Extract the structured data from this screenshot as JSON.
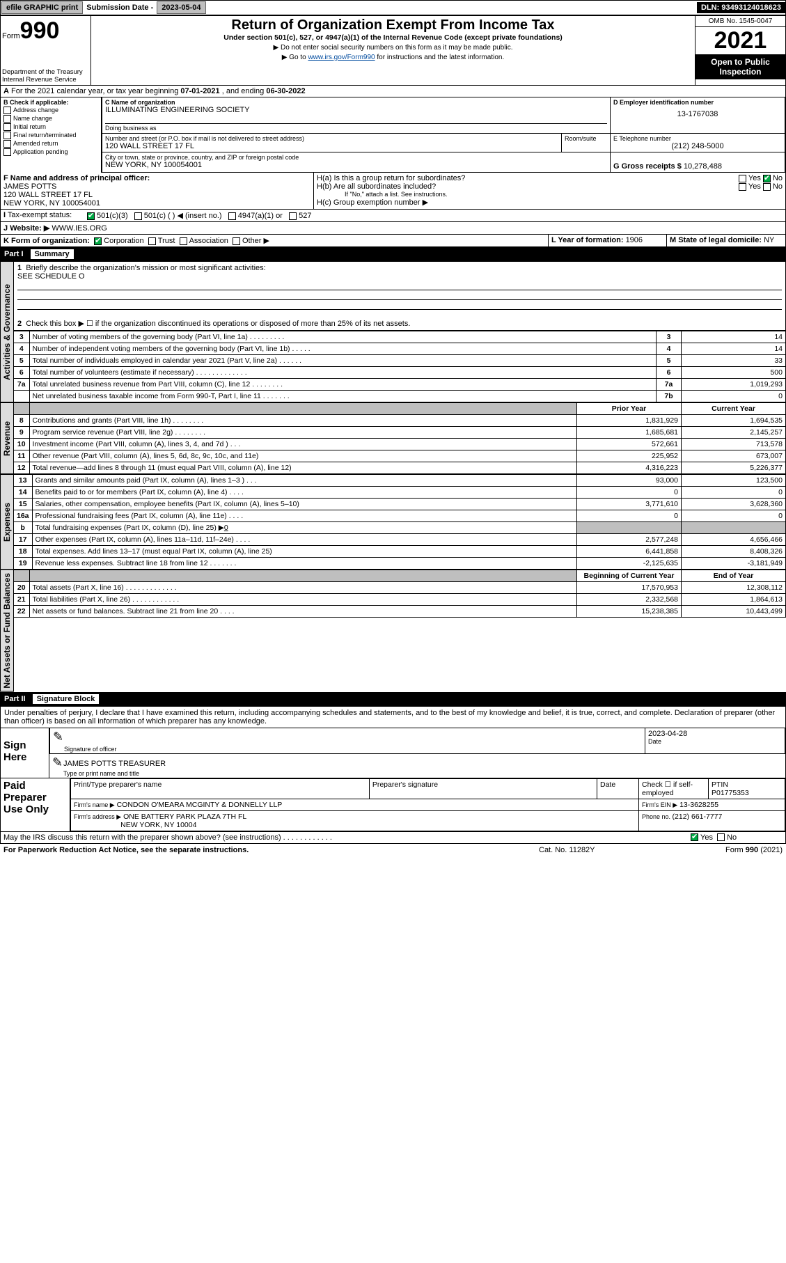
{
  "topbar": {
    "efile": "efile GRAPHIC print",
    "subLbl": "Submission Date - ",
    "subDate": "2023-05-04",
    "dln": "DLN: 93493124018623"
  },
  "header": {
    "form": "Form",
    "num": "990",
    "dept": "Department of the Treasury\nInternal Revenue Service",
    "title": "Return of Organization Exempt From Income Tax",
    "sub": "Under section 501(c), 527, or 4947(a)(1) of the Internal Revenue Code (except private foundations)",
    "note1": "▶ Do not enter social security numbers on this form as it may be made public.",
    "note2": "▶ Go to ",
    "noteLink": "www.irs.gov/Form990",
    "note3": " for instructions and the latest information.",
    "omb": "OMB No. 1545-0047",
    "year": "2021",
    "open": "Open to Public Inspection"
  },
  "A": {
    "text": "For the 2021 calendar year, or tax year beginning ",
    "begin": "07-01-2021",
    "mid": " , and ending ",
    "end": "06-30-2022"
  },
  "B": {
    "hdr": "B Check if applicable:",
    "opts": [
      "Address change",
      "Name change",
      "Initial return",
      "Final return/terminated",
      "Amended return",
      "Application pending"
    ]
  },
  "C": {
    "nameHdr": "C Name of organization",
    "name": "ILLUMINATING ENGINEERING SOCIETY",
    "dbaHdr": "Doing business as",
    "addrHdr": "Number and street (or P.O. box if mail is not delivered to street address)",
    "suite": "Room/suite",
    "addr": "120 WALL STREET 17 FL",
    "cityHdr": "City or town, state or province, country, and ZIP or foreign postal code",
    "city": "NEW YORK, NY  100054001"
  },
  "D": {
    "hdr": "D Employer identification number",
    "ein": "13-1767038"
  },
  "E": {
    "hdr": "E Telephone number",
    "tel": "(212) 248-5000"
  },
  "G": {
    "hdr": "G Gross receipts $ ",
    "val": "10,278,488"
  },
  "F": {
    "hdr": "F Name and address of principal officer:",
    "name": "JAMES POTTS",
    "addr1": "120 WALL STREET 17 FL",
    "addr2": "NEW YORK, NY  100054001"
  },
  "H": {
    "a": "H(a)  Is this a group return for subordinates?",
    "b": "H(b)  Are all subordinates included?",
    "bnote": "If \"No,\" attach a list. See instructions.",
    "c": "H(c)  Group exemption number ▶",
    "yes": "Yes",
    "no": "No"
  },
  "I": {
    "hdr": "Tax-exempt status:",
    "opts": [
      "501(c)(3)",
      "501(c) (   ) ◀ (insert no.)",
      "4947(a)(1) or",
      "527"
    ]
  },
  "J": {
    "hdr": "Website: ▶",
    "val": " WWW.IES.ORG"
  },
  "K": {
    "hdr": "K Form of organization:",
    "opts": [
      "Corporation",
      "Trust",
      "Association",
      "Other ▶"
    ]
  },
  "L": {
    "hdr": "L Year of formation: ",
    "val": "1906"
  },
  "M": {
    "hdr": "M State of legal domicile: ",
    "val": "NY"
  },
  "part1": {
    "hdr": "Part I",
    "title": "Summary",
    "l1": "Briefly describe the organization's mission or most significant activities:",
    "l1v": "SEE SCHEDULE O",
    "l2": "Check this box ▶ ☐ if the organization discontinued its operations or disposed of more than 25% of its net assets.",
    "rows": [
      {
        "n": "3",
        "t": "Number of voting members of the governing body (Part VI, line 1a)   .    .    .    .    .    .    .    .    .",
        "c": "3",
        "v": "14"
      },
      {
        "n": "4",
        "t": "Number of independent voting members of the governing body (Part VI, line 1b)   .    .    .    .    .",
        "c": "4",
        "v": "14"
      },
      {
        "n": "5",
        "t": "Total number of individuals employed in calendar year 2021 (Part V, line 2a)   .    .    .    .    .    .",
        "c": "5",
        "v": "33"
      },
      {
        "n": "6",
        "t": "Total number of volunteers (estimate if necessary)   .    .    .    .    .    .    .    .    .    .    .    .    .",
        "c": "6",
        "v": "500"
      },
      {
        "n": "7a",
        "t": "Total unrelated business revenue from Part VIII, column (C), line 12   .    .    .    .    .    .    .    .",
        "c": "7a",
        "v": "1,019,293"
      },
      {
        "n": "",
        "t": "Net unrelated business taxable income from Form 990-T, Part I, line 11   .    .    .    .    .    .    .",
        "c": "7b",
        "v": "0"
      }
    ],
    "colHdr": {
      "prior": "Prior Year",
      "curr": "Current Year"
    },
    "rev": [
      {
        "n": "8",
        "t": "Contributions and grants (Part VIII, line 1h)   .    .    .    .    .    .    .    .",
        "p": "1,831,929",
        "c": "1,694,535"
      },
      {
        "n": "9",
        "t": "Program service revenue (Part VIII, line 2g)   .    .    .    .    .    .    .    .",
        "p": "1,685,681",
        "c": "2,145,257"
      },
      {
        "n": "10",
        "t": "Investment income (Part VIII, column (A), lines 3, 4, and 7d )   .    .    .",
        "p": "572,661",
        "c": "713,578"
      },
      {
        "n": "11",
        "t": "Other revenue (Part VIII, column (A), lines 5, 6d, 8c, 9c, 10c, and 11e)",
        "p": "225,952",
        "c": "673,007"
      },
      {
        "n": "12",
        "t": "Total revenue—add lines 8 through 11 (must equal Part VIII, column (A), line 12)",
        "p": "4,316,223",
        "c": "5,226,377"
      }
    ],
    "exp": [
      {
        "n": "13",
        "t": "Grants and similar amounts paid (Part IX, column (A), lines 1–3 )   .    .    .",
        "p": "93,000",
        "c": "123,500"
      },
      {
        "n": "14",
        "t": "Benefits paid to or for members (Part IX, column (A), line 4)   .    .    .    .",
        "p": "0",
        "c": "0"
      },
      {
        "n": "15",
        "t": "Salaries, other compensation, employee benefits (Part IX, column (A), lines 5–10)",
        "p": "3,771,610",
        "c": "3,628,360"
      },
      {
        "n": "16a",
        "t": "Professional fundraising fees (Part IX, column (A), line 11e)   .    .    .    .",
        "p": "0",
        "c": "0"
      },
      {
        "n": "b",
        "t": "Total fundraising expenses (Part IX, column (D), line 25) ▶<u>0</u>",
        "p": "",
        "c": "",
        "shade": true
      },
      {
        "n": "17",
        "t": "Other expenses (Part IX, column (A), lines 11a–11d, 11f–24e)   .    .    .    .",
        "p": "2,577,248",
        "c": "4,656,466"
      },
      {
        "n": "18",
        "t": "Total expenses. Add lines 13–17 (must equal Part IX, column (A), line 25)",
        "p": "6,441,858",
        "c": "8,408,326"
      },
      {
        "n": "19",
        "t": "Revenue less expenses. Subtract line 18 from line 12   .    .    .    .    .    .    .",
        "p": "-2,125,635",
        "c": "-3,181,949"
      }
    ],
    "netHdr": {
      "beg": "Beginning of Current Year",
      "end": "End of Year"
    },
    "net": [
      {
        "n": "20",
        "t": "Total assets (Part X, line 16)   .    .    .    .    .    .    .    .    .    .    .    .    .",
        "p": "17,570,953",
        "c": "12,308,112"
      },
      {
        "n": "21",
        "t": "Total liabilities (Part X, line 26)   .    .    .    .    .    .    .    .    .    .    .    .",
        "p": "2,332,568",
        "c": "1,864,613"
      },
      {
        "n": "22",
        "t": "Net assets or fund balances. Subtract line 21 from line 20   .    .    .    .",
        "p": "15,238,385",
        "c": "10,443,499"
      }
    ],
    "sections": {
      "gov": "Activities & Governance",
      "rev": "Revenue",
      "exp": "Expenses",
      "net": "Net Assets or Fund Balances"
    }
  },
  "part2": {
    "hdr": "Part II",
    "title": "Signature Block",
    "decl": "Under penalties of perjury, I declare that I have examined this return, including accompanying schedules and statements, and to the best of my knowledge and belief, it is true, correct, and complete. Declaration of preparer (other than officer) is based on all information of which preparer has any knowledge.",
    "signHere": "Sign Here",
    "sigOff": "Signature of officer",
    "date": "Date",
    "dateVal": "2023-04-28",
    "officer": "JAMES POTTS  TREASURER",
    "typeName": "Type or print name and title",
    "paid": "Paid Preparer Use Only",
    "pName": "Print/Type preparer's name",
    "pSig": "Preparer's signature",
    "pDate": "Date",
    "pCheck": "Check ☐ if self-employed",
    "ptin": "PTIN",
    "ptinV": "P01775353",
    "firmName": "Firm's name    ▶",
    "firmV": "CONDON O'MEARA MCGINTY & DONNELLY LLP",
    "firmEin": "Firm's EIN ▶",
    "firmEinV": "13-3628255",
    "firmAddr": "Firm's address ▶",
    "firmAddrV": "ONE BATTERY PARK PLAZA 7TH FL",
    "firmCity": "NEW YORK, NY  10004",
    "phone": "Phone no. ",
    "phoneV": "(212) 661-7777",
    "may": "May the IRS discuss this return with the preparer shown above? (see instructions)   .    .    .    .    .    .    .    .    .    .    .    .",
    "yes": "Yes",
    "no": "No"
  },
  "footer": {
    "pra": "For Paperwork Reduction Act Notice, see the separate instructions.",
    "cat": "Cat. No. 11282Y",
    "form": "Form 990 (2021)"
  }
}
